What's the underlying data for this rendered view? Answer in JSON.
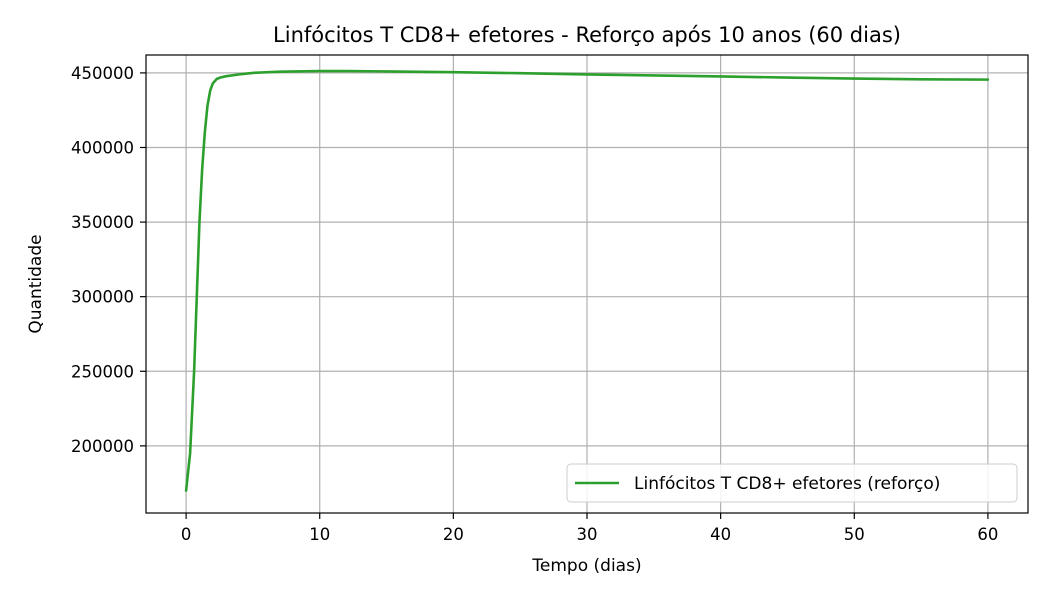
{
  "chart_data": {
    "type": "line",
    "title": "Linfócitos T CD8+ efetores - Reforço após 10 anos (60 dias)",
    "xlabel": "Tempo (dias)",
    "ylabel": "Quantidade",
    "xlim": [
      -3,
      63
    ],
    "ylim": [
      155000,
      462000
    ],
    "xticks": [
      0,
      10,
      20,
      30,
      40,
      50,
      60
    ],
    "yticks": [
      200000,
      250000,
      300000,
      350000,
      400000,
      450000
    ],
    "grid": true,
    "legend_position": "bottom-right",
    "series": [
      {
        "name": "Linfócitos T CD8+ efetores (reforço)",
        "color": "#2ca02c",
        "x": [
          0,
          0.3,
          0.6,
          0.8,
          1.0,
          1.2,
          1.4,
          1.6,
          1.8,
          2.0,
          2.3,
          2.6,
          3.0,
          4.0,
          5.0,
          7.0,
          10.0,
          12.0,
          15.0,
          20.0,
          25.0,
          30.0,
          35.0,
          40.0,
          45.0,
          50.0,
          55.0,
          60.0
        ],
        "y": [
          170000,
          195000,
          250000,
          300000,
          350000,
          385000,
          410000,
          428000,
          438000,
          443000,
          446000,
          447000,
          447800,
          449000,
          450000,
          450800,
          451200,
          451200,
          451000,
          450500,
          449800,
          449000,
          448300,
          447600,
          446900,
          446200,
          445700,
          445500
        ]
      }
    ]
  }
}
